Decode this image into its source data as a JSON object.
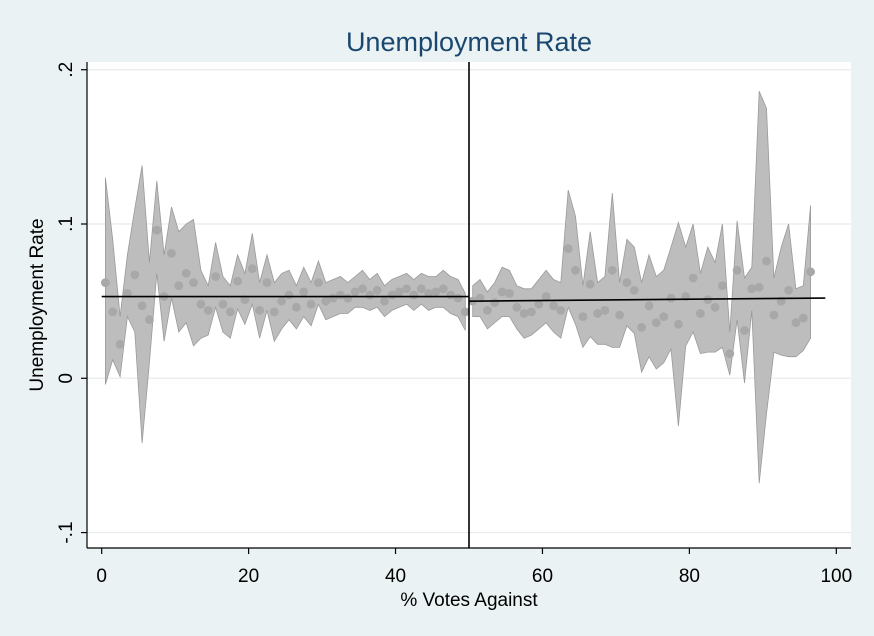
{
  "chart_data": {
    "type": "scatter",
    "title": "Unemployment Rate",
    "xlabel": "% Votes Against",
    "ylabel": "Unemployment Rate",
    "xlim": [
      -2,
      102
    ],
    "ylim": [
      -0.11,
      0.205
    ],
    "x_ticks": [
      {
        "value": 0,
        "label": "0"
      },
      {
        "value": 20,
        "label": "20"
      },
      {
        "value": 40,
        "label": "40"
      },
      {
        "value": 60,
        "label": "60"
      },
      {
        "value": 80,
        "label": "80"
      },
      {
        "value": 100,
        "label": "100"
      }
    ],
    "y_ticks": [
      {
        "value": -0.1,
        "label": "-.1"
      },
      {
        "value": 0,
        "label": "0"
      },
      {
        "value": 0.1,
        "label": ".1"
      },
      {
        "value": 0.2,
        "label": ".2"
      }
    ],
    "grid": true,
    "cutoff": 50,
    "colors": {
      "background": "#eaf2f3",
      "plot_area": "#ffffff",
      "title": "#1a476f",
      "band": "#bdbdbd",
      "band_edge": "#9a9a9a",
      "points": "#a8a8a8",
      "fit": "#000000",
      "grid": "#e8ecee"
    },
    "series": [
      {
        "name": "",
        "points": [
          [
            0.5,
            0.062
          ],
          [
            1.5,
            0.043
          ],
          [
            2.5,
            0.022
          ],
          [
            3.5,
            0.055
          ],
          [
            4.5,
            0.067
          ],
          [
            5.5,
            0.047
          ],
          [
            6.5,
            0.038
          ],
          [
            7.5,
            0.096
          ],
          [
            8.5,
            0.053
          ],
          [
            9.5,
            0.081
          ],
          [
            10.5,
            0.06
          ],
          [
            11.5,
            0.068
          ],
          [
            12.5,
            0.062
          ],
          [
            13.5,
            0.048
          ],
          [
            14.5,
            0.044
          ],
          [
            15.5,
            0.066
          ],
          [
            16.5,
            0.048
          ],
          [
            17.5,
            0.043
          ],
          [
            18.5,
            0.063
          ],
          [
            19.5,
            0.051
          ],
          [
            20.5,
            0.071
          ],
          [
            21.5,
            0.044
          ],
          [
            22.5,
            0.062
          ],
          [
            23.5,
            0.043
          ],
          [
            24.5,
            0.05
          ],
          [
            25.5,
            0.054
          ],
          [
            26.5,
            0.046
          ],
          [
            27.5,
            0.056
          ],
          [
            28.5,
            0.048
          ],
          [
            29.5,
            0.062
          ],
          [
            30.5,
            0.05
          ],
          [
            31.5,
            0.052
          ],
          [
            32.5,
            0.054
          ],
          [
            33.5,
            0.052
          ],
          [
            34.5,
            0.056
          ],
          [
            35.5,
            0.058
          ],
          [
            36.5,
            0.054
          ],
          [
            37.5,
            0.057
          ],
          [
            38.5,
            0.05
          ],
          [
            39.5,
            0.054
          ],
          [
            40.5,
            0.056
          ],
          [
            41.5,
            0.058
          ],
          [
            42.5,
            0.054
          ],
          [
            43.5,
            0.058
          ],
          [
            44.5,
            0.055
          ],
          [
            45.5,
            0.056
          ],
          [
            46.5,
            0.058
          ],
          [
            47.5,
            0.054
          ],
          [
            48.5,
            0.052
          ],
          [
            49.5,
            0.043
          ],
          [
            50.5,
            0.05
          ],
          [
            51.5,
            0.052
          ],
          [
            52.5,
            0.044
          ],
          [
            53.5,
            0.049
          ],
          [
            54.5,
            0.056
          ],
          [
            55.5,
            0.055
          ],
          [
            56.5,
            0.046
          ],
          [
            57.5,
            0.042
          ],
          [
            58.5,
            0.043
          ],
          [
            59.5,
            0.048
          ],
          [
            60.5,
            0.053
          ],
          [
            61.5,
            0.047
          ],
          [
            62.5,
            0.044
          ],
          [
            63.5,
            0.084
          ],
          [
            64.5,
            0.07
          ],
          [
            65.5,
            0.04
          ],
          [
            66.5,
            0.061
          ],
          [
            67.5,
            0.042
          ],
          [
            68.5,
            0.044
          ],
          [
            69.5,
            0.07
          ],
          [
            70.5,
            0.041
          ],
          [
            71.5,
            0.062
          ],
          [
            72.5,
            0.057
          ],
          [
            73.5,
            0.033
          ],
          [
            74.5,
            0.047
          ],
          [
            75.5,
            0.036
          ],
          [
            76.5,
            0.04
          ],
          [
            77.5,
            0.052
          ],
          [
            78.5,
            0.035
          ],
          [
            79.5,
            0.053
          ],
          [
            80.5,
            0.065
          ],
          [
            81.5,
            0.042
          ],
          [
            82.5,
            0.051
          ],
          [
            83.5,
            0.046
          ],
          [
            84.5,
            0.06
          ],
          [
            85.5,
            0.016
          ],
          [
            86.5,
            0.07
          ],
          [
            87.5,
            0.031
          ],
          [
            88.5,
            0.058
          ],
          [
            89.5,
            0.059
          ],
          [
            90.5,
            0.076
          ],
          [
            91.5,
            0.041
          ],
          [
            92.5,
            0.05
          ],
          [
            93.5,
            0.057
          ],
          [
            94.5,
            0.036
          ],
          [
            95.5,
            0.039
          ],
          [
            96.5,
            0.069
          ]
        ],
        "ci_upper": [
          [
            0.5,
            0.13
          ],
          [
            1.5,
            0.09
          ],
          [
            2.5,
            0.04
          ],
          [
            3.5,
            0.08
          ],
          [
            4.5,
            0.11
          ],
          [
            5.5,
            0.138
          ],
          [
            6.5,
            0.075
          ],
          [
            7.5,
            0.128
          ],
          [
            8.5,
            0.08
          ],
          [
            9.5,
            0.111
          ],
          [
            10.5,
            0.095
          ],
          [
            11.5,
            0.1
          ],
          [
            12.5,
            0.103
          ],
          [
            13.5,
            0.07
          ],
          [
            14.5,
            0.06
          ],
          [
            15.5,
            0.088
          ],
          [
            16.5,
            0.066
          ],
          [
            17.5,
            0.06
          ],
          [
            18.5,
            0.08
          ],
          [
            19.5,
            0.068
          ],
          [
            20.5,
            0.094
          ],
          [
            21.5,
            0.062
          ],
          [
            22.5,
            0.08
          ],
          [
            23.5,
            0.062
          ],
          [
            24.5,
            0.068
          ],
          [
            25.5,
            0.07
          ],
          [
            26.5,
            0.06
          ],
          [
            27.5,
            0.072
          ],
          [
            28.5,
            0.062
          ],
          [
            29.5,
            0.076
          ],
          [
            30.5,
            0.062
          ],
          [
            31.5,
            0.064
          ],
          [
            32.5,
            0.066
          ],
          [
            33.5,
            0.062
          ],
          [
            34.5,
            0.066
          ],
          [
            35.5,
            0.07
          ],
          [
            36.5,
            0.064
          ],
          [
            37.5,
            0.068
          ],
          [
            38.5,
            0.06
          ],
          [
            39.5,
            0.064
          ],
          [
            40.5,
            0.066
          ],
          [
            41.5,
            0.068
          ],
          [
            42.5,
            0.064
          ],
          [
            43.5,
            0.068
          ],
          [
            44.5,
            0.066
          ],
          [
            45.5,
            0.066
          ],
          [
            46.5,
            0.07
          ],
          [
            47.5,
            0.066
          ],
          [
            48.5,
            0.064
          ],
          [
            49.5,
            0.055
          ],
          [
            50.5,
            0.06
          ],
          [
            51.5,
            0.064
          ],
          [
            52.5,
            0.056
          ],
          [
            53.5,
            0.062
          ],
          [
            54.5,
            0.072
          ],
          [
            55.5,
            0.07
          ],
          [
            56.5,
            0.06
          ],
          [
            57.5,
            0.058
          ],
          [
            58.5,
            0.058
          ],
          [
            59.5,
            0.064
          ],
          [
            60.5,
            0.07
          ],
          [
            61.5,
            0.064
          ],
          [
            62.5,
            0.062
          ],
          [
            63.5,
            0.122
          ],
          [
            64.5,
            0.105
          ],
          [
            65.5,
            0.06
          ],
          [
            66.5,
            0.095
          ],
          [
            67.5,
            0.062
          ],
          [
            68.5,
            0.066
          ],
          [
            69.5,
            0.12
          ],
          [
            70.5,
            0.062
          ],
          [
            71.5,
            0.09
          ],
          [
            72.5,
            0.085
          ],
          [
            73.5,
            0.062
          ],
          [
            74.5,
            0.08
          ],
          [
            75.5,
            0.066
          ],
          [
            76.5,
            0.07
          ],
          [
            77.5,
            0.085
          ],
          [
            78.5,
            0.101
          ],
          [
            79.5,
            0.085
          ],
          [
            80.5,
            0.1
          ],
          [
            81.5,
            0.068
          ],
          [
            82.5,
            0.085
          ],
          [
            83.5,
            0.075
          ],
          [
            84.5,
            0.1
          ],
          [
            85.5,
            0.03
          ],
          [
            86.5,
            0.102
          ],
          [
            87.5,
            0.065
          ],
          [
            88.5,
            0.072
          ],
          [
            89.5,
            0.186
          ],
          [
            90.5,
            0.175
          ],
          [
            91.5,
            0.065
          ],
          [
            92.5,
            0.085
          ],
          [
            93.5,
            0.1
          ],
          [
            94.5,
            0.058
          ],
          [
            95.5,
            0.06
          ],
          [
            96.5,
            0.112
          ]
        ],
        "ci_lower": [
          [
            0.5,
            -0.004
          ],
          [
            1.5,
            0.012
          ],
          [
            2.5,
            0.001
          ],
          [
            3.5,
            0.04
          ],
          [
            4.5,
            0.03
          ],
          [
            5.5,
            -0.042
          ],
          [
            6.5,
            0.01
          ],
          [
            7.5,
            0.068
          ],
          [
            8.5,
            0.024
          ],
          [
            9.5,
            0.052
          ],
          [
            10.5,
            0.03
          ],
          [
            11.5,
            0.036
          ],
          [
            12.5,
            0.021
          ],
          [
            13.5,
            0.026
          ],
          [
            14.5,
            0.028
          ],
          [
            15.5,
            0.046
          ],
          [
            16.5,
            0.03
          ],
          [
            17.5,
            0.026
          ],
          [
            18.5,
            0.045
          ],
          [
            19.5,
            0.035
          ],
          [
            20.5,
            0.048
          ],
          [
            21.5,
            0.026
          ],
          [
            22.5,
            0.044
          ],
          [
            23.5,
            0.024
          ],
          [
            24.5,
            0.032
          ],
          [
            25.5,
            0.038
          ],
          [
            26.5,
            0.032
          ],
          [
            27.5,
            0.04
          ],
          [
            28.5,
            0.034
          ],
          [
            29.5,
            0.048
          ],
          [
            30.5,
            0.038
          ],
          [
            31.5,
            0.04
          ],
          [
            32.5,
            0.042
          ],
          [
            33.5,
            0.042
          ],
          [
            34.5,
            0.046
          ],
          [
            35.5,
            0.046
          ],
          [
            36.5,
            0.044
          ],
          [
            37.5,
            0.046
          ],
          [
            38.5,
            0.04
          ],
          [
            39.5,
            0.044
          ],
          [
            40.5,
            0.046
          ],
          [
            41.5,
            0.048
          ],
          [
            42.5,
            0.044
          ],
          [
            43.5,
            0.048
          ],
          [
            44.5,
            0.044
          ],
          [
            45.5,
            0.046
          ],
          [
            46.5,
            0.046
          ],
          [
            47.5,
            0.042
          ],
          [
            48.5,
            0.04
          ],
          [
            49.5,
            0.031
          ],
          [
            50.5,
            0.04
          ],
          [
            51.5,
            0.04
          ],
          [
            52.5,
            0.032
          ],
          [
            53.5,
            0.036
          ],
          [
            54.5,
            0.04
          ],
          [
            55.5,
            0.04
          ],
          [
            56.5,
            0.032
          ],
          [
            57.5,
            0.026
          ],
          [
            58.5,
            0.028
          ],
          [
            59.5,
            0.032
          ],
          [
            60.5,
            0.036
          ],
          [
            61.5,
            0.03
          ],
          [
            62.5,
            0.026
          ],
          [
            63.5,
            0.046
          ],
          [
            64.5,
            0.035
          ],
          [
            65.5,
            0.02
          ],
          [
            66.5,
            0.027
          ],
          [
            67.5,
            0.022
          ],
          [
            68.5,
            0.022
          ],
          [
            69.5,
            0.02
          ],
          [
            70.5,
            0.02
          ],
          [
            71.5,
            0.034
          ],
          [
            72.5,
            0.029
          ],
          [
            73.5,
            0.004
          ],
          [
            74.5,
            0.014
          ],
          [
            75.5,
            0.006
          ],
          [
            76.5,
            0.01
          ],
          [
            77.5,
            0.019
          ],
          [
            78.5,
            -0.031
          ],
          [
            79.5,
            0.021
          ],
          [
            80.5,
            0.03
          ],
          [
            81.5,
            0.016
          ],
          [
            82.5,
            0.017
          ],
          [
            83.5,
            0.017
          ],
          [
            84.5,
            0.02
          ],
          [
            85.5,
            0.002
          ],
          [
            86.5,
            0.038
          ],
          [
            87.5,
            -0.003
          ],
          [
            88.5,
            0.044
          ],
          [
            89.5,
            -0.068
          ],
          [
            90.5,
            -0.023
          ],
          [
            91.5,
            0.017
          ],
          [
            92.5,
            0.015
          ],
          [
            93.5,
            0.014
          ],
          [
            94.5,
            0.014
          ],
          [
            95.5,
            0.018
          ],
          [
            96.5,
            0.026
          ]
        ],
        "fit_left": [
          [
            0,
            0.053
          ],
          [
            50,
            0.053
          ]
        ],
        "fit_right": [
          [
            50,
            0.05
          ],
          [
            98.5,
            0.052
          ]
        ]
      }
    ]
  }
}
